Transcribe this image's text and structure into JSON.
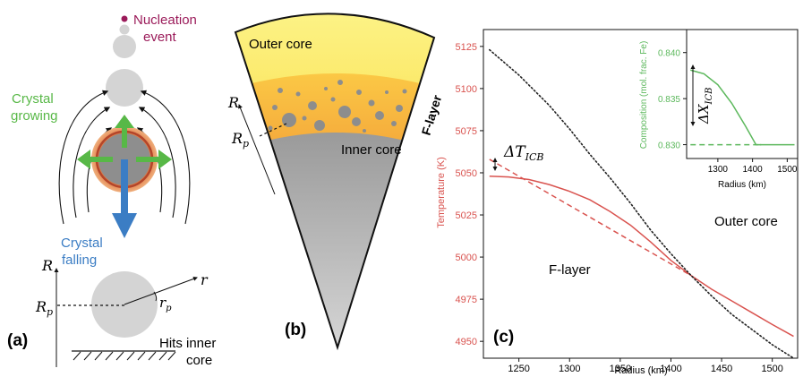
{
  "panel_a": {
    "panel_label": "(a)",
    "nucleation_label_1": "Nucleation",
    "nucleation_label_2": "event",
    "growing_label_1": "Crystal",
    "growing_label_2": "growing",
    "falling_label_1": "Crystal",
    "falling_label_2": "falling",
    "axis_R": "R",
    "axis_Rp": "R",
    "axis_Rp_sub": "p",
    "axis_r": "r",
    "axis_rp": "r",
    "axis_rp_sub": "p",
    "hits_label_1": "Hits inner",
    "hits_label_2": "core",
    "colors": {
      "nucleation": "#9b1b5a",
      "growing": "#58b847",
      "falling": "#3b7dc4"
    }
  },
  "panel_b": {
    "panel_label": "(b)",
    "outer_core": "Outer core",
    "inner_core": "Inner core",
    "f_layer": "F-layer",
    "axis_R": "R",
    "axis_Rp": "R",
    "axis_Rp_sub": "p"
  },
  "panel_c": {
    "panel_label": "(c)",
    "region_outer": "Outer core",
    "region_f": "F-layer",
    "delta_T": "ΔT",
    "delta_T_sub": "ICB",
    "colors": {
      "temperature": "#d9534f",
      "composition": "#5cb85c",
      "liquidus": "#222222"
    }
  },
  "chart_data": [
    {
      "type": "line",
      "xlabel": "Radius (km)",
      "ylabel": "Temperature (K)",
      "xlim": [
        1215,
        1525
      ],
      "ylim": [
        4940,
        5135
      ],
      "xticks": [
        "1250",
        "1300",
        "1350",
        "1400",
        "1450",
        "1500"
      ],
      "yticks": [
        "4950",
        "4975",
        "5000",
        "5025",
        "5050",
        "5075",
        "5100",
        "5125"
      ],
      "series": [
        {
          "style": "solid",
          "color": "#d9534f",
          "x": [
            1221,
            1240,
            1260,
            1280,
            1300,
            1320,
            1340,
            1360,
            1380,
            1400,
            1420,
            1440,
            1460,
            1480,
            1500,
            1521
          ],
          "y": [
            5048,
            5047.5,
            5046,
            5043,
            5039,
            5034,
            5027,
            5019,
            5009,
            4998,
            4989,
            4981,
            4974,
            4967,
            4960,
            4953
          ]
        },
        {
          "style": "dashed",
          "color": "#d9534f",
          "x": [
            1221,
            1420
          ],
          "y": [
            5058,
            4989
          ]
        },
        {
          "style": "dotted",
          "color": "#222222",
          "x": [
            1221,
            1250,
            1280,
            1300,
            1320,
            1340,
            1360,
            1380,
            1400,
            1420,
            1440,
            1460,
            1480,
            1500,
            1521
          ],
          "y": [
            5123,
            5108,
            5090,
            5076,
            5061,
            5047,
            5032,
            5016,
            5002,
            4989,
            4977,
            4966,
            4957,
            4948,
            4940
          ]
        }
      ]
    },
    {
      "type": "line",
      "xlabel": "Radius (km)",
      "ylabel": "Composition (mol. frac. Fe)",
      "ylabel_symbol": "ΔX",
      "ylabel_symbol_sub": "ICB",
      "xlim": [
        1210,
        1530
      ],
      "ylim": [
        0.8285,
        0.8425
      ],
      "xticks": [
        "1300",
        "1400",
        "1500"
      ],
      "yticks": [
        "0.830",
        "0.835",
        "0.840"
      ],
      "series": [
        {
          "style": "solid",
          "color": "#5cb85c",
          "x": [
            1221,
            1260,
            1300,
            1340,
            1380,
            1410,
            1425
          ],
          "y": [
            0.8381,
            0.8377,
            0.8365,
            0.8345,
            0.832,
            0.83,
            0.83
          ]
        },
        {
          "style": "dashed",
          "color": "#5cb85c",
          "x": [
            1221,
            1421
          ],
          "y": [
            0.83,
            0.83
          ]
        },
        {
          "style": "solid",
          "color": "#5cb85c",
          "x": [
            1421,
            1521
          ],
          "y": [
            0.83,
            0.83
          ]
        }
      ]
    }
  ]
}
